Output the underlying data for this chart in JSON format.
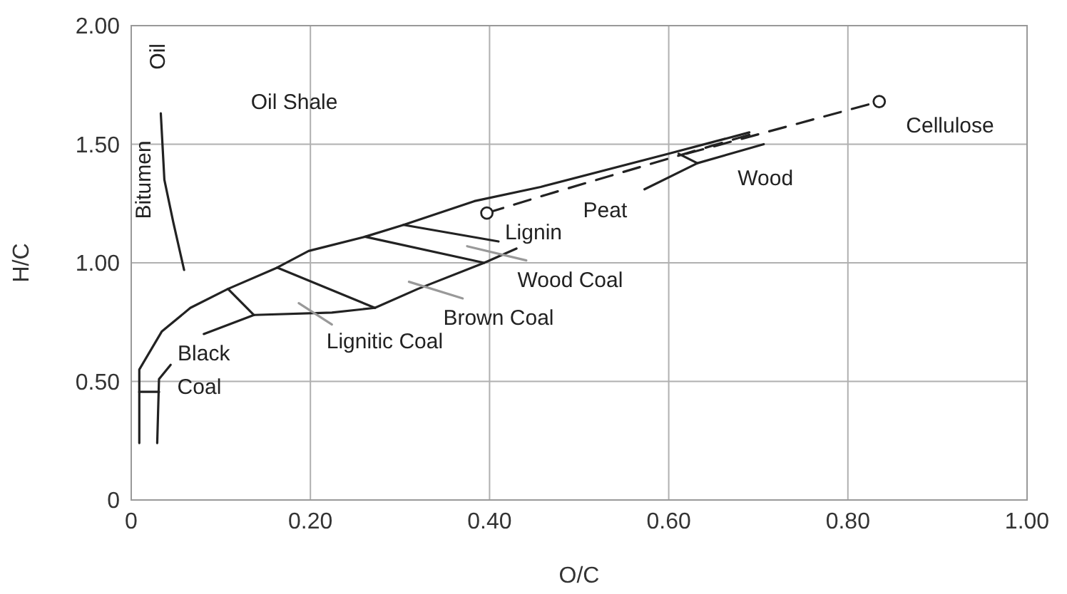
{
  "chart_data": {
    "type": "line",
    "xlabel": "O/C",
    "ylabel": "H/C",
    "xlim": [
      0,
      1
    ],
    "ylim": [
      0,
      2
    ],
    "xticks": [
      0,
      {
        "value": 0.2,
        "label": "0.20"
      },
      {
        "value": 0.4,
        "label": "0.40"
      },
      {
        "value": 0.6,
        "label": "0.60"
      },
      {
        "value": 0.8,
        "label": "0.80"
      },
      {
        "value": 1,
        "label": "1.00"
      }
    ],
    "yticks": [
      0,
      {
        "value": 0.5,
        "label": "0.50"
      },
      {
        "value": 1,
        "label": "1.00"
      },
      {
        "value": 1.5,
        "label": "1.50"
      },
      {
        "value": 2,
        "label": "2.00"
      }
    ],
    "grid": true,
    "series": [
      {
        "color": "#222222",
        "line_style": "solid",
        "x": [
          0.009,
          0.009,
          0.034,
          0.066,
          0.108,
          0.163,
          0.198,
          0.261,
          0.304,
          0.383,
          0.457,
          0.6,
          0.69
        ],
        "values": [
          0.24,
          0.55,
          0.71,
          0.81,
          0.89,
          0.98,
          1.05,
          1.11,
          1.16,
          1.26,
          1.32,
          1.46,
          1.55
        ]
      },
      {
        "color": "#222222",
        "line_style": "solid",
        "x": [
          0.029,
          0.031,
          0.044
        ],
        "values": [
          0.24,
          0.51,
          0.57
        ]
      },
      {
        "color": "#222222",
        "line_style": "solid",
        "x": [
          0.081,
          0.137,
          0.224,
          0.272,
          0.32,
          0.394,
          0.43,
          0.5,
          0.573,
          0.632,
          0.706
        ],
        "values": [
          0.7,
          0.78,
          0.79,
          0.81,
          0.89,
          1.0,
          1.06,
          null,
          1.31,
          1.42,
          1.5
        ]
      },
      {
        "color": "#222222",
        "line_style": "solid",
        "x": [
          0.033,
          0.037,
          0.047,
          0.059
        ],
        "values": [
          1.63,
          1.35,
          1.17,
          0.97
        ]
      },
      {
        "color": "#222222",
        "line_style": "solid",
        "x": [
          0.009,
          0.031
        ],
        "values": [
          0.456,
          0.456
        ]
      },
      {
        "color": "#222222",
        "line_style": "solid",
        "x": [
          0.108,
          0.137
        ],
        "values": [
          0.89,
          0.78
        ]
      },
      {
        "color": "#222222",
        "line_style": "solid",
        "x": [
          0.163,
          0.272
        ],
        "values": [
          0.98,
          0.81
        ]
      },
      {
        "color": "#222222",
        "line_style": "solid",
        "x": [
          0.261,
          0.394
        ],
        "values": [
          1.11,
          1.0
        ]
      },
      {
        "color": "#222222",
        "line_style": "solid",
        "x": [
          0.304,
          0.41
        ],
        "values": [
          1.16,
          1.09
        ]
      },
      {
        "color": "#222222",
        "line_style": "solid",
        "x": [
          0.611,
          0.632
        ],
        "values": [
          1.46,
          1.42
        ]
      },
      {
        "color": "#222222",
        "line_style": "dashed",
        "x": [
          0.397,
          0.457,
          0.69
        ],
        "values": [
          1.21,
          1.28,
          1.54
        ]
      },
      {
        "color": "#222222",
        "line_style": "dashed",
        "x": [
          0.62,
          0.835
        ],
        "values": [
          1.46,
          1.68
        ]
      },
      {
        "color": "#999999",
        "line_style": "solid",
        "x": [
          0.187,
          0.224
        ],
        "values": [
          0.83,
          0.74
        ]
      },
      {
        "color": "#999999",
        "line_style": "solid",
        "x": [
          0.31,
          0.37
        ],
        "values": [
          0.92,
          0.85
        ]
      },
      {
        "color": "#999999",
        "line_style": "solid",
        "x": [
          0.375,
          0.441
        ],
        "values": [
          1.07,
          1.01
        ]
      },
      {
        "type": "scatter",
        "color": "#222222",
        "marker": "circle",
        "x": [
          0.397,
          0.835
        ],
        "values": [
          1.21,
          1.68
        ]
      }
    ],
    "annotations": [
      "Oil",
      "Bitumen",
      "Oil Shale",
      "Black",
      "Coal",
      "Lignitic Coal",
      "Brown Coal",
      "Wood Coal",
      "Lignin",
      "Peat",
      "Wood",
      "Cellulose"
    ]
  }
}
